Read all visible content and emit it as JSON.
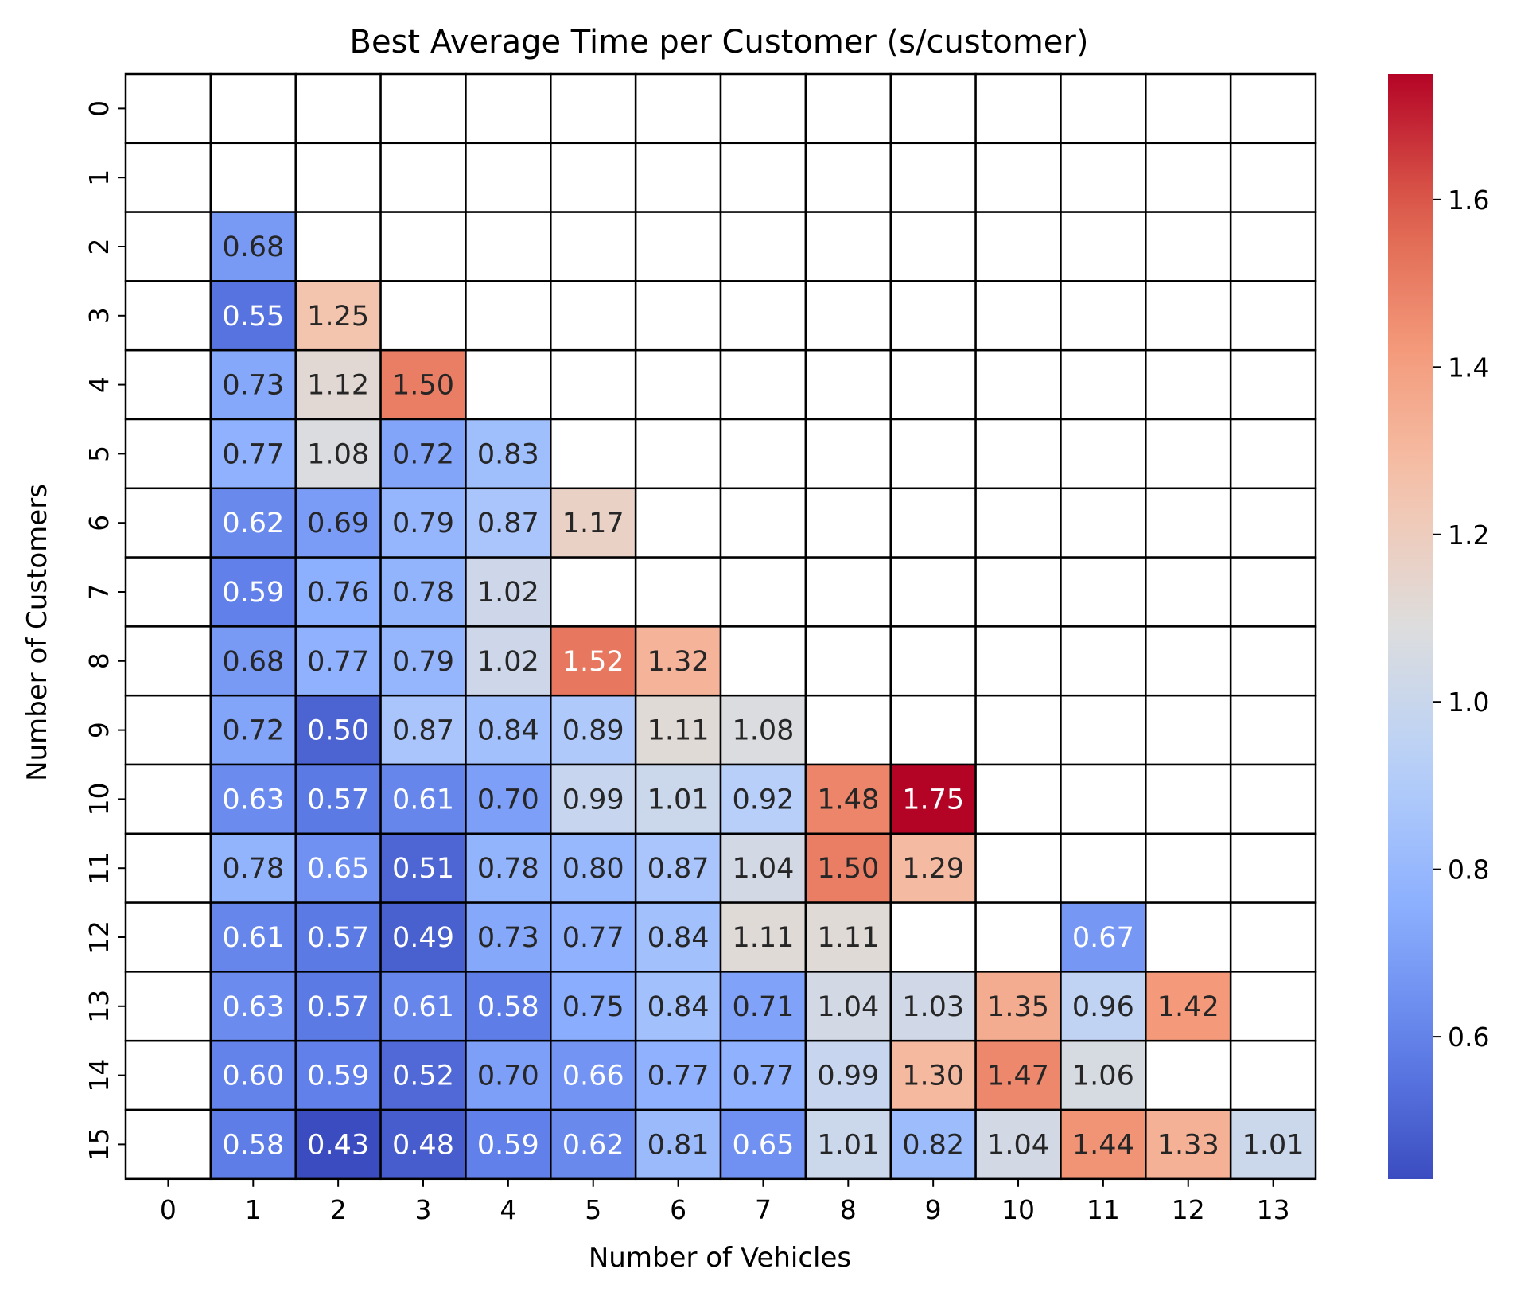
{
  "chart_data": {
    "type": "heatmap",
    "title": "Best Average Time per Customer (s/customer)",
    "xlabel": "Number of Vehicles",
    "ylabel": "Number of Customers",
    "x_categories": [
      "0",
      "1",
      "2",
      "3",
      "4",
      "5",
      "6",
      "7",
      "8",
      "9",
      "10",
      "11",
      "12",
      "13"
    ],
    "y_categories": [
      "0",
      "1",
      "2",
      "3",
      "4",
      "5",
      "6",
      "7",
      "8",
      "9",
      "10",
      "11",
      "12",
      "13",
      "14",
      "15"
    ],
    "values": [
      [
        null,
        null,
        null,
        null,
        null,
        null,
        null,
        null,
        null,
        null,
        null,
        null,
        null,
        null
      ],
      [
        null,
        null,
        null,
        null,
        null,
        null,
        null,
        null,
        null,
        null,
        null,
        null,
        null,
        null
      ],
      [
        null,
        0.68,
        null,
        null,
        null,
        null,
        null,
        null,
        null,
        null,
        null,
        null,
        null,
        null
      ],
      [
        null,
        0.55,
        1.25,
        null,
        null,
        null,
        null,
        null,
        null,
        null,
        null,
        null,
        null,
        null
      ],
      [
        null,
        0.73,
        1.12,
        1.5,
        null,
        null,
        null,
        null,
        null,
        null,
        null,
        null,
        null,
        null
      ],
      [
        null,
        0.77,
        1.08,
        0.72,
        0.83,
        null,
        null,
        null,
        null,
        null,
        null,
        null,
        null,
        null
      ],
      [
        null,
        0.62,
        0.69,
        0.79,
        0.87,
        1.17,
        null,
        null,
        null,
        null,
        null,
        null,
        null,
        null
      ],
      [
        null,
        0.59,
        0.76,
        0.78,
        1.02,
        null,
        null,
        null,
        null,
        null,
        null,
        null,
        null,
        null
      ],
      [
        null,
        0.68,
        0.77,
        0.79,
        1.02,
        1.52,
        1.32,
        null,
        null,
        null,
        null,
        null,
        null,
        null
      ],
      [
        null,
        0.72,
        0.5,
        0.87,
        0.84,
        0.89,
        1.11,
        1.08,
        null,
        null,
        null,
        null,
        null,
        null
      ],
      [
        null,
        0.63,
        0.57,
        0.61,
        0.7,
        0.99,
        1.01,
        0.92,
        1.48,
        1.75,
        null,
        null,
        null,
        null
      ],
      [
        null,
        0.78,
        0.65,
        0.51,
        0.78,
        0.8,
        0.87,
        1.04,
        1.5,
        1.29,
        null,
        null,
        null,
        null
      ],
      [
        null,
        0.61,
        0.57,
        0.49,
        0.73,
        0.77,
        0.84,
        1.11,
        1.11,
        null,
        null,
        0.67,
        null,
        null
      ],
      [
        null,
        0.63,
        0.57,
        0.61,
        0.58,
        0.75,
        0.84,
        0.71,
        1.04,
        1.03,
        1.35,
        0.96,
        1.42,
        null
      ],
      [
        null,
        0.6,
        0.59,
        0.52,
        0.7,
        0.66,
        0.77,
        0.77,
        0.99,
        1.3,
        1.47,
        1.06,
        null,
        null
      ],
      [
        null,
        0.58,
        0.43,
        0.48,
        0.59,
        0.62,
        0.81,
        0.65,
        1.01,
        0.82,
        1.04,
        1.44,
        1.33,
        1.01
      ]
    ],
    "value_format": "0.00",
    "colormap": "coolwarm",
    "vmin": 0.43,
    "vmax": 1.75,
    "colorbar_ticks": [
      0.6,
      0.8,
      1.0,
      1.2,
      1.4,
      1.6
    ],
    "colorbar_tick_labels": [
      "0.6",
      "0.8",
      "1.0",
      "1.2",
      "1.4",
      "1.6"
    ],
    "cell_border_color": "#000000",
    "empty_cell_color": "#ffffff",
    "colorbar_position": "right"
  }
}
